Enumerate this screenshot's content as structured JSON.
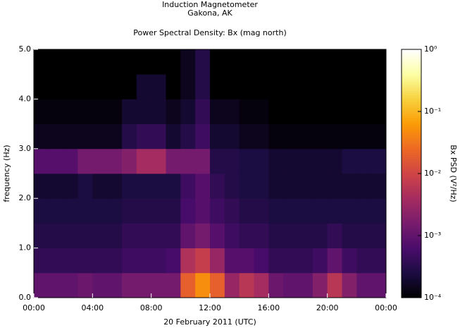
{
  "chart_data": {
    "type": "spectrogram",
    "title": "Induction Magnetometer",
    "subtitle": "Gakona, AK",
    "plot_title": "Power Spectral Density: Bx (mag north)",
    "x_label": "20 February 2011 (UTC)",
    "y_label": "frequency (Hz)",
    "colorbar_label": "Bx PSD (V²/Hz)",
    "time_bins": [
      0,
      1,
      2,
      3,
      4,
      5,
      6,
      7,
      8,
      9,
      10,
      11,
      12,
      13,
      14,
      15,
      16,
      17,
      18,
      19,
      20,
      21,
      22,
      23,
      24
    ],
    "freq_bins": [
      0,
      0.5,
      1,
      1.5,
      2,
      2.5,
      3,
      3.5,
      4,
      4.5,
      5
    ],
    "values": [
      [
        0.001,
        0.001,
        0.001,
        0.0012,
        0.001,
        0.001,
        0.0015,
        0.0015,
        0.0015,
        0.0015,
        0.02,
        0.05,
        0.02,
        0.003,
        0.006,
        0.004,
        0.0012,
        0.001,
        0.001,
        0.002,
        0.006,
        0.002,
        0.001,
        0.001
      ],
      [
        0.0004,
        0.0004,
        0.0004,
        0.0004,
        0.0004,
        0.0004,
        0.0005,
        0.0005,
        0.0005,
        0.0006,
        0.005,
        0.008,
        0.003,
        0.0008,
        0.0008,
        0.0006,
        0.0004,
        0.0004,
        0.0004,
        0.0005,
        0.001,
        0.0005,
        0.0004,
        0.0004
      ],
      [
        0.0003,
        0.0003,
        0.0003,
        0.0003,
        0.0003,
        0.0003,
        0.0004,
        0.0004,
        0.0004,
        0.0004,
        0.001,
        0.0015,
        0.0008,
        0.0005,
        0.0004,
        0.0004,
        0.0003,
        0.0003,
        0.0003,
        0.0003,
        0.0004,
        0.0003,
        0.0003,
        0.0003
      ],
      [
        0.00025,
        0.00025,
        0.00025,
        0.00025,
        0.00025,
        0.00025,
        0.0003,
        0.0003,
        0.0003,
        0.0003,
        0.0006,
        0.0008,
        0.0005,
        0.0004,
        0.0003,
        0.0003,
        0.00025,
        0.00025,
        0.00025,
        0.00025,
        0.00025,
        0.00025,
        0.00025,
        0.00025
      ],
      [
        0.0002,
        0.0002,
        0.0002,
        0.00025,
        0.0002,
        0.0002,
        0.00025,
        0.00025,
        0.00025,
        0.00025,
        0.0005,
        0.0008,
        0.0004,
        0.0003,
        0.00025,
        0.00025,
        0.0002,
        0.0002,
        0.0002,
        0.0002,
        0.0002,
        0.0002,
        0.0002,
        0.0002
      ],
      [
        0.0008,
        0.0008,
        0.0008,
        0.0015,
        0.0015,
        0.0015,
        0.002,
        0.004,
        0.004,
        0.0015,
        0.0015,
        0.0015,
        0.0003,
        0.0003,
        0.00025,
        0.00025,
        0.0002,
        0.0002,
        0.0002,
        0.0002,
        0.0002,
        0.00025,
        0.00025,
        0.00025
      ],
      [
        0.00015,
        0.00015,
        0.00015,
        0.00015,
        0.00015,
        0.00015,
        0.0003,
        0.0004,
        0.0004,
        0.0002,
        0.0003,
        0.0005,
        0.0002,
        0.0002,
        0.00015,
        0.00015,
        0.00012,
        0.00012,
        0.00012,
        0.00012,
        0.00012,
        0.00012,
        0.00012,
        0.00012
      ],
      [
        0.00012,
        0.00012,
        0.00012,
        0.00012,
        0.00012,
        0.00012,
        0.0002,
        0.0002,
        0.0002,
        0.00015,
        0.0002,
        0.0004,
        0.00015,
        0.00015,
        0.00012,
        0.00012,
        0.0001,
        0.0001,
        0.0001,
        0.0001,
        0.0001,
        0.0001,
        0.0001,
        0.0001
      ],
      [
        0.0001,
        0.0001,
        0.0001,
        0.0001,
        0.0001,
        0.0001,
        0.0001,
        0.0002,
        0.0002,
        0.0001,
        0.00015,
        0.0003,
        0.0001,
        0.0001,
        0.0001,
        0.0001,
        0.0001,
        0.0001,
        0.0001,
        0.0001,
        0.0001,
        0.0001,
        0.0001,
        0.0001
      ],
      [
        0.0001,
        0.0001,
        0.0001,
        0.0001,
        0.0001,
        0.0001,
        0.0001,
        0.0001,
        0.0001,
        0.0001,
        0.00015,
        0.0003,
        0.0001,
        0.0001,
        0.0001,
        0.0001,
        0.0001,
        0.0001,
        0.0001,
        0.0001,
        0.0001,
        0.0001,
        0.0001,
        0.0001
      ]
    ],
    "xlim": [
      0,
      24
    ],
    "xticks": [
      {
        "value": 0,
        "label": "00:00"
      },
      {
        "value": 4,
        "label": "04:00"
      },
      {
        "value": 8,
        "label": "08:00"
      },
      {
        "value": 12,
        "label": "12:00"
      },
      {
        "value": 16,
        "label": "16:00"
      },
      {
        "value": 20,
        "label": "20:00"
      },
      {
        "value": 24,
        "label": "00:00"
      }
    ],
    "ylim": [
      0,
      5
    ],
    "yticks": [
      {
        "value": 0,
        "label": "0.0"
      },
      {
        "value": 1,
        "label": "1.0"
      },
      {
        "value": 2,
        "label": "2.0"
      },
      {
        "value": 3,
        "label": "3.0"
      },
      {
        "value": 4,
        "label": "4.0"
      },
      {
        "value": 5,
        "label": "5.0"
      }
    ],
    "clim": [
      0.0001,
      1
    ],
    "cticks": [
      {
        "value": 0.0001,
        "label": "10⁻⁴"
      },
      {
        "value": 0.001,
        "label": "10⁻³"
      },
      {
        "value": 0.01,
        "label": "10⁻²"
      },
      {
        "value": 0.1,
        "label": "10⁻¹"
      },
      {
        "value": 1,
        "label": "10⁰"
      }
    ],
    "color_log_scale": true,
    "colormap": [
      "#000000",
      "#1b0c41",
      "#4a0c6b",
      "#781c6d",
      "#a52c60",
      "#cf4446",
      "#ed6925",
      "#fb9b06",
      "#f7d13d",
      "#fcffa4",
      "#ffffff"
    ]
  }
}
